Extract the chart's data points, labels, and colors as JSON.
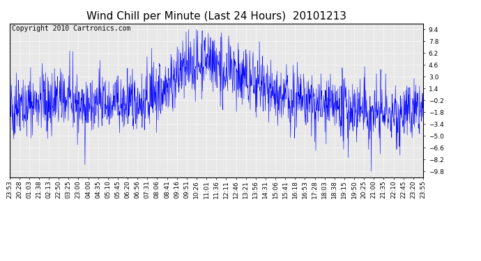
{
  "title": "Wind Chill per Minute (Last 24 Hours)  20101213",
  "copyright_text": "Copyright 2010 Cartronics.com",
  "yticks": [
    9.4,
    7.8,
    6.2,
    4.6,
    3.0,
    1.4,
    -0.2,
    -1.8,
    -3.4,
    -5.0,
    -6.6,
    -8.2,
    -9.8
  ],
  "ylim": [
    -10.6,
    10.2
  ],
  "xtick_labels": [
    "23:53",
    "20:28",
    "01:03",
    "21:38",
    "02:13",
    "22:50",
    "03:25",
    "23:00",
    "04:00",
    "04:35",
    "05:10",
    "05:45",
    "06:20",
    "06:56",
    "07:31",
    "08:06",
    "08:41",
    "09:16",
    "09:51",
    "10:26",
    "11:01",
    "11:36",
    "12:11",
    "12:46",
    "13:21",
    "13:56",
    "14:31",
    "15:06",
    "15:41",
    "16:18",
    "16:53",
    "17:28",
    "18:03",
    "18:38",
    "19:15",
    "19:50",
    "20:25",
    "21:00",
    "21:35",
    "22:10",
    "22:45",
    "23:20",
    "23:55"
  ],
  "line_color": "#0000FF",
  "bg_color": "#FFFFFF",
  "plot_bg_color": "#E8E8E8",
  "grid_color": "#FFFFFF",
  "title_fontsize": 11,
  "copyright_fontsize": 7,
  "tick_label_fontsize": 6.5,
  "seed": 42,
  "n_points": 1440
}
